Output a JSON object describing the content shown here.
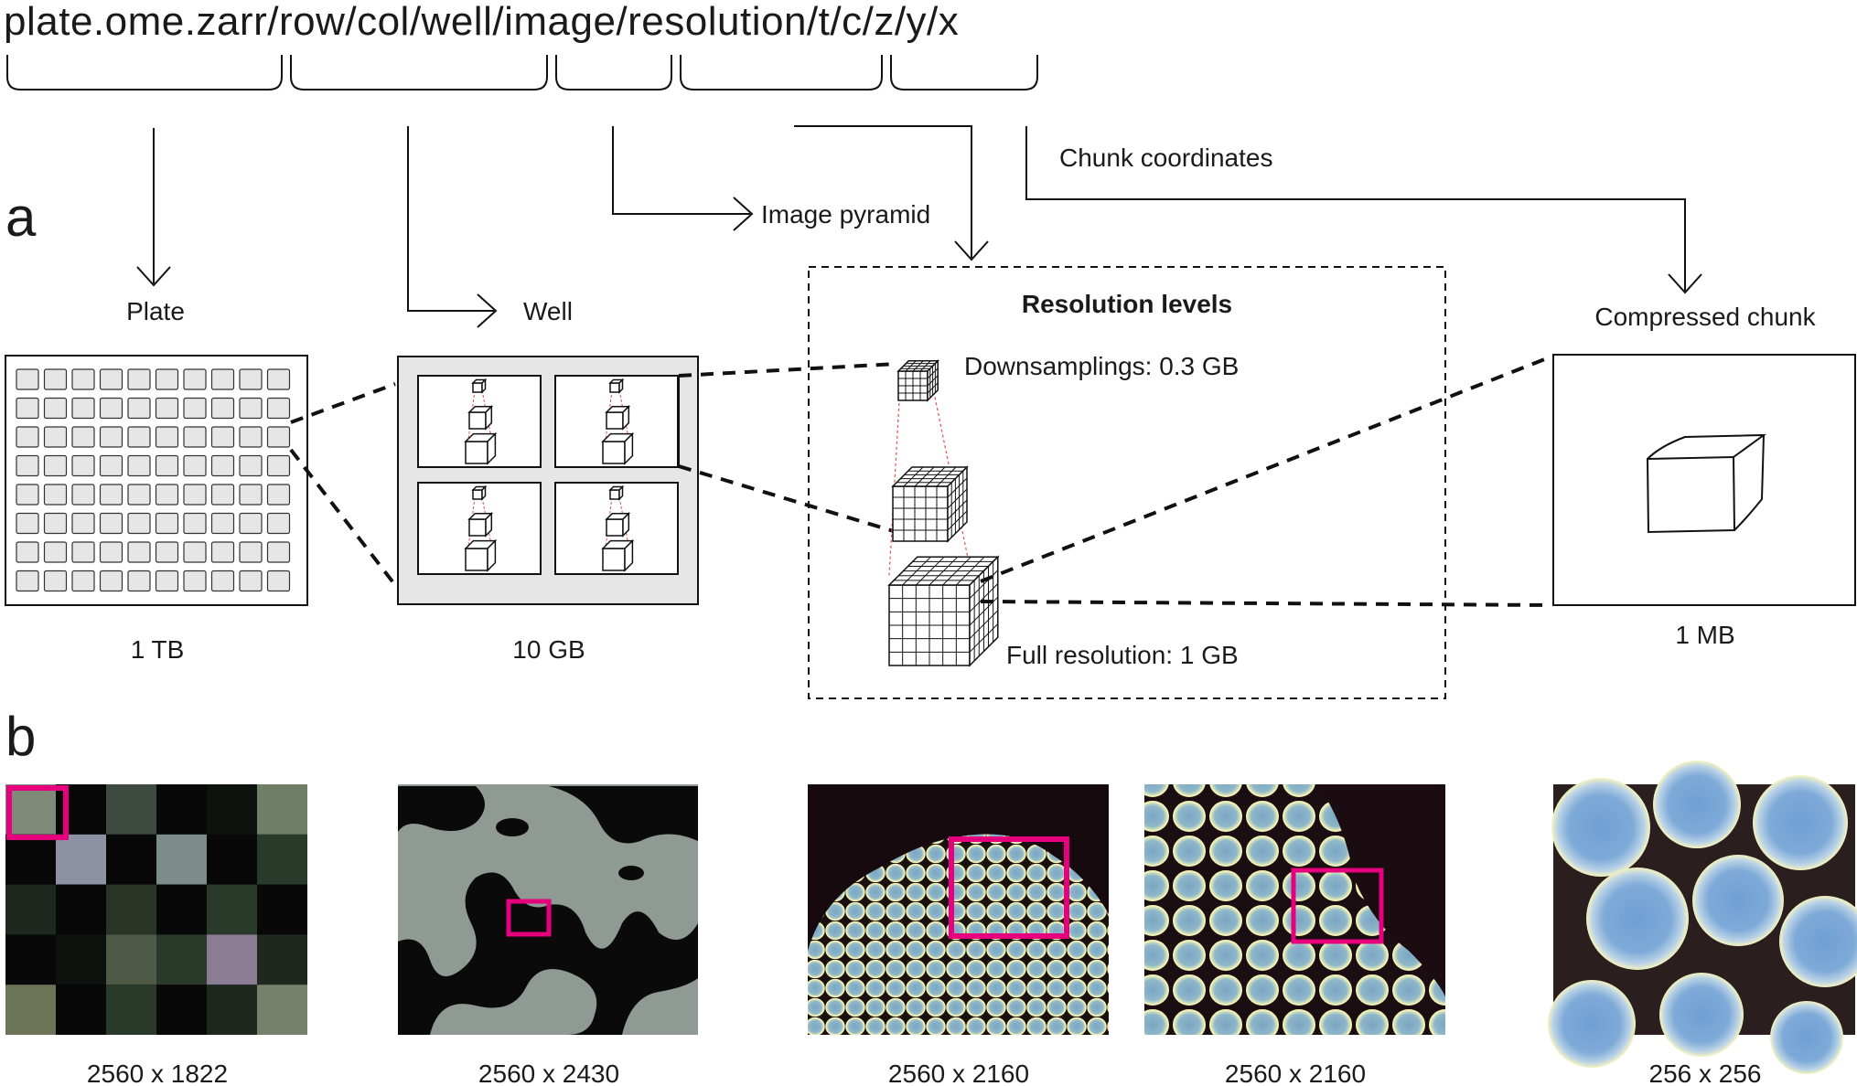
{
  "path": {
    "text": "plate.ome.zarr/row/col/well/image/resolution/t/c/z/y/x"
  },
  "panel_labels": {
    "a": "a",
    "b": "b"
  },
  "labels": {
    "plate": "Plate",
    "well": "Well",
    "image_pyramid": "Image pyramid",
    "chunk_coordinates": "Chunk coordinates",
    "resolution_levels": "Resolution levels",
    "downsamplings": "Downsamplings: 0.3 GB",
    "full_resolution": "Full resolution: 1 GB",
    "compressed_chunk": "Compressed chunk"
  },
  "sizes": {
    "plate": "1 TB",
    "well": "10 GB",
    "chunk": "1 MB"
  },
  "images": [
    {
      "id": "plate-view",
      "caption": "2560 x 1822"
    },
    {
      "id": "well-view",
      "caption": "2560 x 2430"
    },
    {
      "id": "image-view-low",
      "caption": "2560 x 2160"
    },
    {
      "id": "image-view-high",
      "caption": "2560 x 2160"
    },
    {
      "id": "chunk-view",
      "caption": "256 x 256"
    }
  ],
  "colors": {
    "highlight": "#e6007e",
    "pyramid_lines": "#d9534f",
    "well_background": "#e6e6e6",
    "stroke": "#111111"
  }
}
